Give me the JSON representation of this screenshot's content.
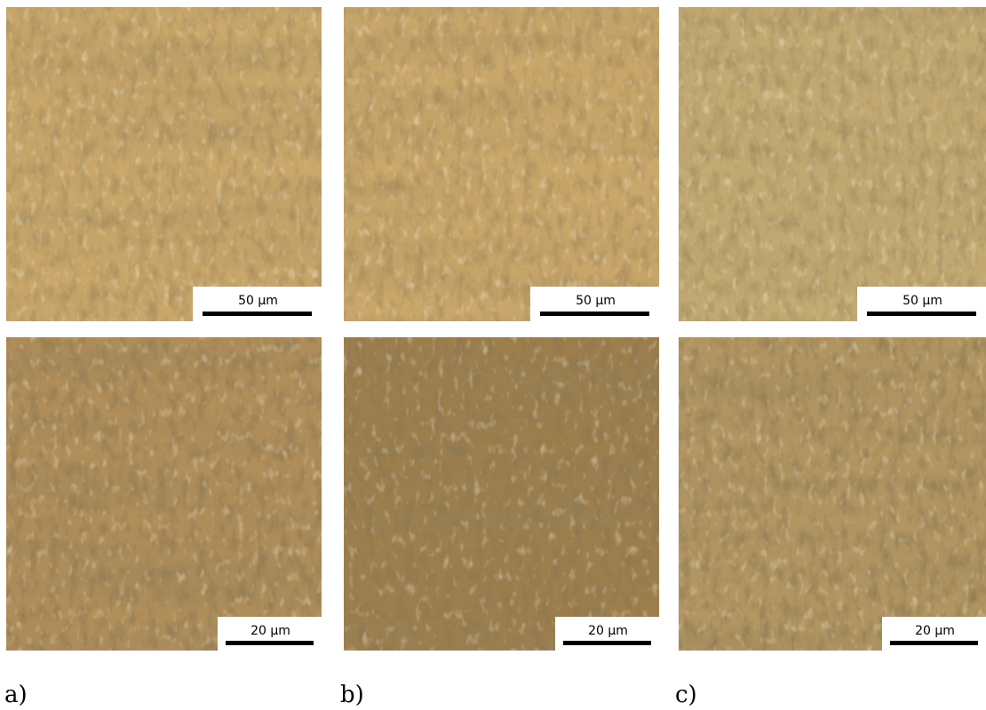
{
  "columns": [
    {
      "label": "a)",
      "images": [
        {
          "scale_bar": "50 µm"
        },
        {
          "scale_bar": "20 µm"
        }
      ]
    },
    {
      "label": "b)",
      "images": [
        {
          "scale_bar": "50 µm"
        },
        {
          "scale_bar": "20 µm"
        }
      ]
    },
    {
      "label": "c)",
      "images": [
        {
          "scale_bar": "50 µm"
        },
        {
          "scale_bar": "20 µm"
        }
      ]
    }
  ]
}
